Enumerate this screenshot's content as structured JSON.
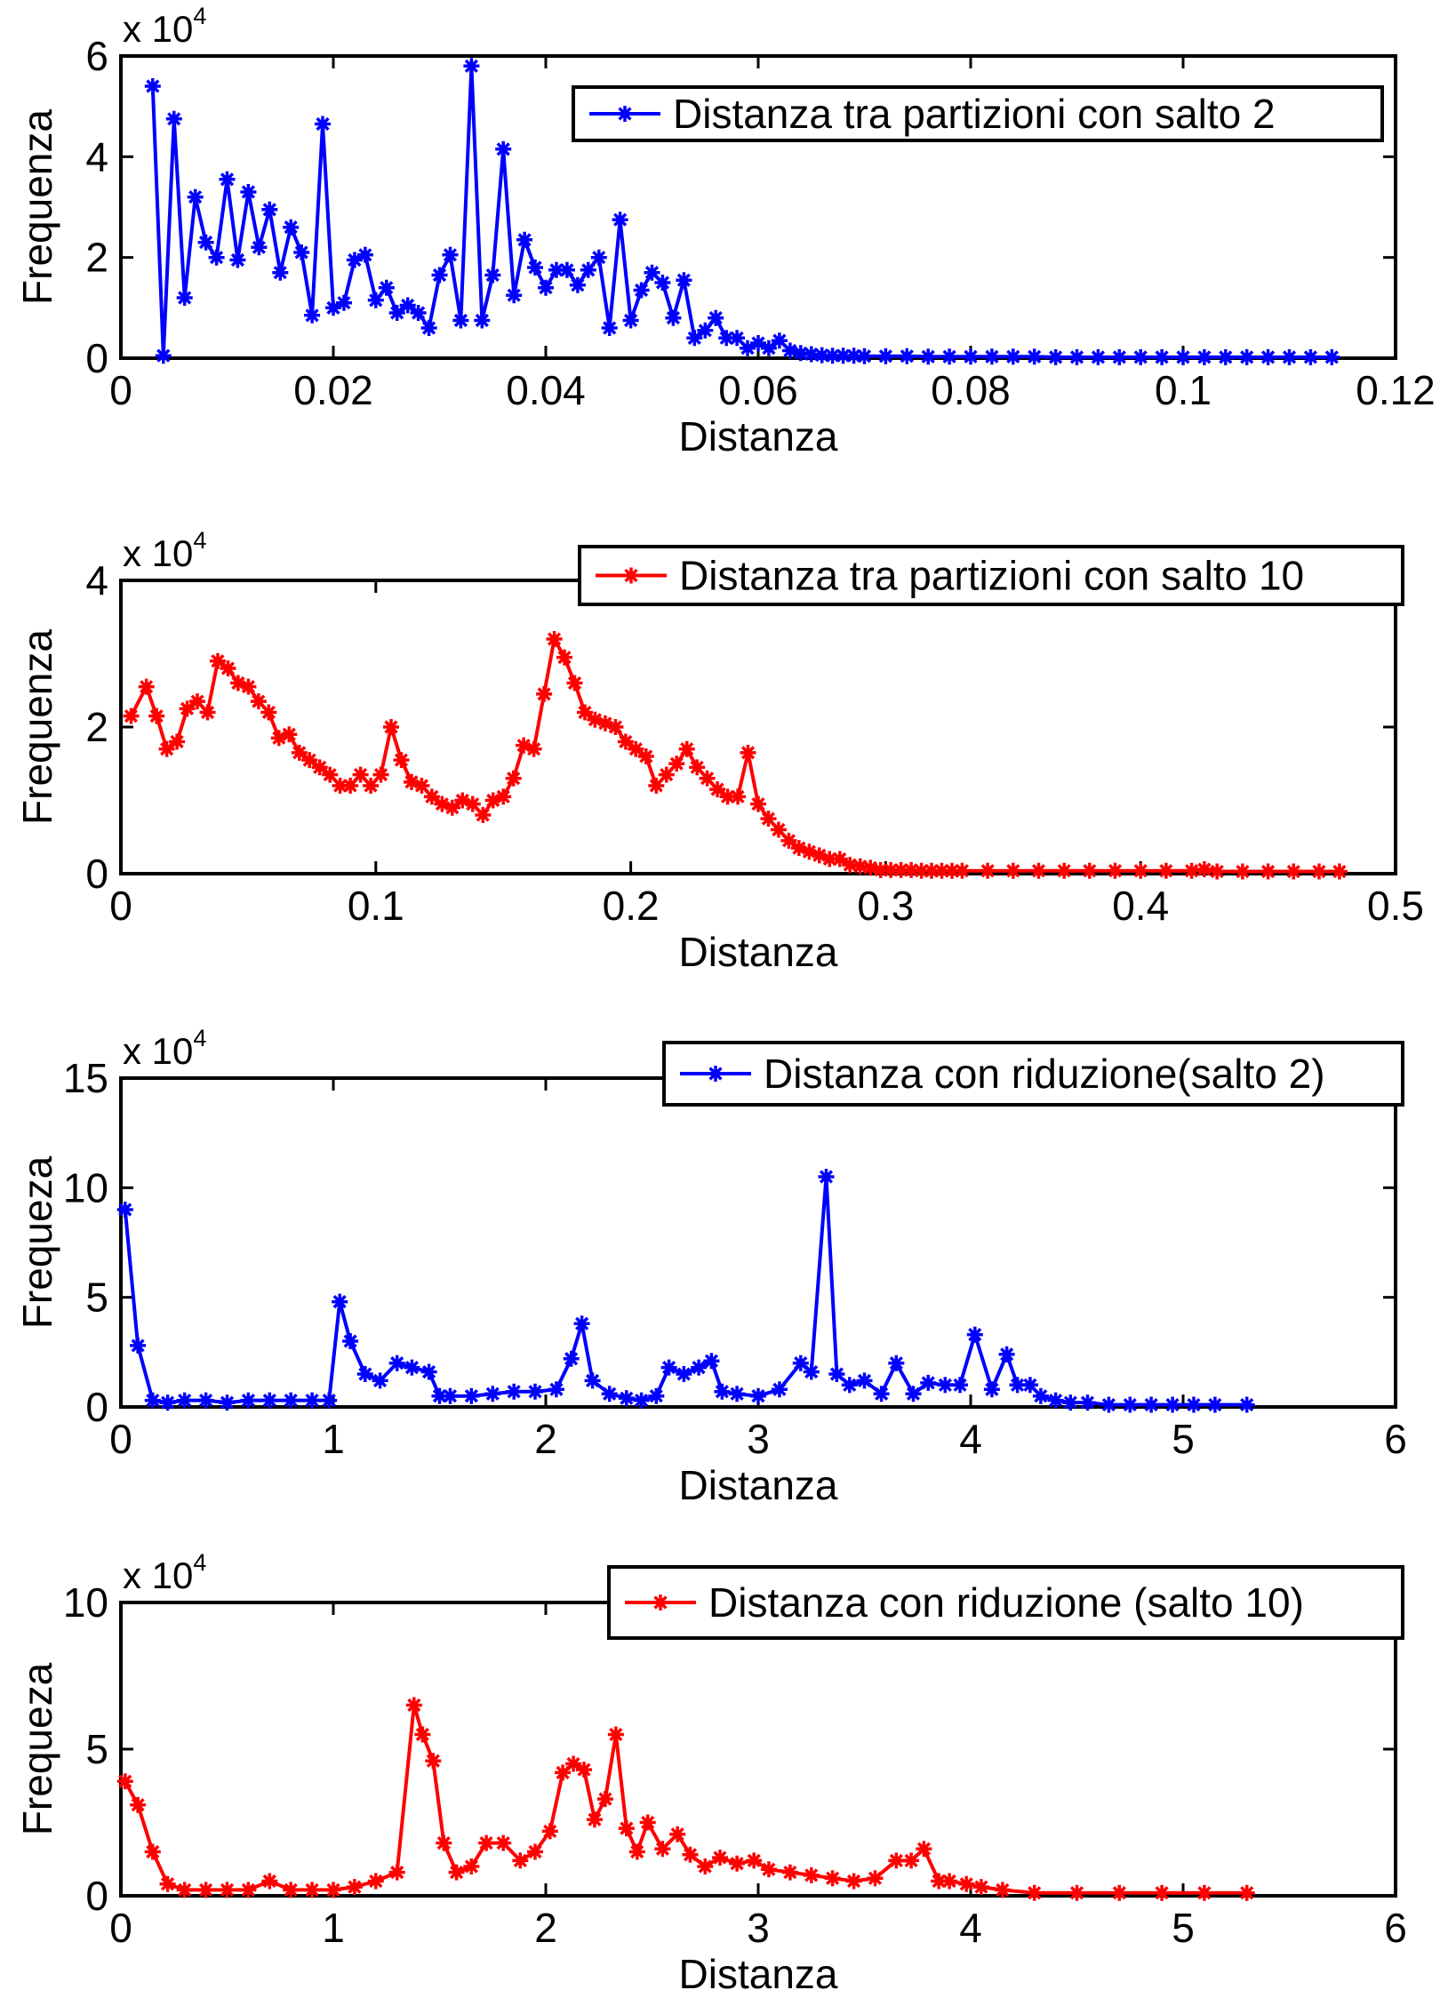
{
  "chart_data": [
    {
      "type": "line",
      "xlabel": "Distanza",
      "ylabel": "Frequenza",
      "xlim": [
        0,
        0.12
      ],
      "ylim": [
        0,
        6
      ],
      "xticks": [
        "0",
        "0.02",
        "0.04",
        "0.06",
        "0.08",
        "0.1",
        "0.12"
      ],
      "yticks": [
        "0",
        "2",
        "4",
        "6"
      ],
      "y_multiplier": {
        "base": "x 10",
        "exponent": "4"
      },
      "legend_position": "top-right",
      "grid": false,
      "series": [
        {
          "name": "Distanza tra partizioni con salto 2",
          "color": "#0000ff",
          "marker": "asterisk",
          "x": [
            0.003,
            0.004,
            0.005,
            0.006,
            0.007,
            0.008,
            0.009,
            0.01,
            0.011,
            0.012,
            0.013,
            0.014,
            0.015,
            0.016,
            0.017,
            0.018,
            0.019,
            0.02,
            0.021,
            0.022,
            0.023,
            0.024,
            0.025,
            0.026,
            0.027,
            0.028,
            0.029,
            0.03,
            0.031,
            0.032,
            0.033,
            0.034,
            0.035,
            0.036,
            0.037,
            0.038,
            0.039,
            0.04,
            0.041,
            0.042,
            0.043,
            0.044,
            0.045,
            0.046,
            0.047,
            0.048,
            0.049,
            0.05,
            0.051,
            0.052,
            0.053,
            0.054,
            0.055,
            0.056,
            0.057,
            0.058,
            0.059,
            0.06,
            0.061,
            0.062,
            0.063,
            0.064,
            0.065,
            0.066,
            0.067,
            0.068,
            0.069,
            0.07,
            0.072,
            0.074,
            0.076,
            0.078,
            0.08,
            0.082,
            0.084,
            0.086,
            0.088,
            0.09,
            0.092,
            0.094,
            0.096,
            0.098,
            0.1,
            0.102,
            0.104,
            0.106,
            0.108,
            0.11,
            0.112,
            0.114
          ],
          "y": [
            5.4,
            0.05,
            4.75,
            1.2,
            3.2,
            2.3,
            2.0,
            3.55,
            1.95,
            3.3,
            2.2,
            2.95,
            1.7,
            2.6,
            2.1,
            0.85,
            4.65,
            1.0,
            1.1,
            1.95,
            2.05,
            1.15,
            1.4,
            0.9,
            1.05,
            0.9,
            0.6,
            1.65,
            2.05,
            0.75,
            5.8,
            0.75,
            1.65,
            4.15,
            1.25,
            2.35,
            1.8,
            1.4,
            1.75,
            1.75,
            1.45,
            1.75,
            2.0,
            0.6,
            2.75,
            0.75,
            1.35,
            1.7,
            1.5,
            0.8,
            1.55,
            0.4,
            0.55,
            0.8,
            0.4,
            0.4,
            0.2,
            0.3,
            0.2,
            0.35,
            0.15,
            0.1,
            0.08,
            0.06,
            0.05,
            0.05,
            0.05,
            0.04,
            0.04,
            0.04,
            0.03,
            0.03,
            0.03,
            0.03,
            0.03,
            0.03,
            0.02,
            0.02,
            0.02,
            0.02,
            0.02,
            0.02,
            0.02,
            0.02,
            0.02,
            0.02,
            0.02,
            0.02,
            0.02,
            0.02
          ]
        }
      ]
    },
    {
      "type": "line",
      "xlabel": "Distanza",
      "ylabel": "Frequenza",
      "xlim": [
        0,
        0.5
      ],
      "ylim": [
        0,
        4
      ],
      "xticks": [
        "0",
        "0.1",
        "0.2",
        "0.3",
        "0.4",
        "0.5"
      ],
      "yticks": [
        "0",
        "2",
        "4"
      ],
      "y_multiplier": {
        "base": "x 10",
        "exponent": "4"
      },
      "legend_position": "top-right",
      "grid": false,
      "series": [
        {
          "name": "Distanza tra partizioni con salto 10",
          "color": "#ff0000",
          "marker": "asterisk",
          "x": [
            0.004,
            0.01,
            0.014,
            0.018,
            0.022,
            0.026,
            0.03,
            0.034,
            0.038,
            0.042,
            0.046,
            0.05,
            0.054,
            0.058,
            0.062,
            0.066,
            0.07,
            0.074,
            0.078,
            0.082,
            0.086,
            0.09,
            0.094,
            0.098,
            0.102,
            0.106,
            0.11,
            0.114,
            0.118,
            0.122,
            0.126,
            0.13,
            0.134,
            0.138,
            0.142,
            0.146,
            0.15,
            0.154,
            0.158,
            0.162,
            0.166,
            0.17,
            0.174,
            0.178,
            0.182,
            0.186,
            0.19,
            0.194,
            0.198,
            0.202,
            0.206,
            0.21,
            0.214,
            0.218,
            0.222,
            0.226,
            0.23,
            0.234,
            0.238,
            0.242,
            0.246,
            0.25,
            0.254,
            0.258,
            0.262,
            0.266,
            0.27,
            0.274,
            0.278,
            0.282,
            0.286,
            0.29,
            0.294,
            0.298,
            0.302,
            0.306,
            0.31,
            0.314,
            0.318,
            0.322,
            0.326,
            0.33,
            0.34,
            0.35,
            0.36,
            0.37,
            0.38,
            0.39,
            0.4,
            0.41,
            0.42,
            0.425,
            0.43,
            0.44,
            0.45,
            0.46,
            0.47,
            0.478
          ],
          "y": [
            2.15,
            2.55,
            2.15,
            1.7,
            1.8,
            2.25,
            2.35,
            2.2,
            2.9,
            2.8,
            2.6,
            2.55,
            2.35,
            2.2,
            1.85,
            1.9,
            1.65,
            1.55,
            1.45,
            1.35,
            1.2,
            1.2,
            1.35,
            1.2,
            1.35,
            2.0,
            1.55,
            1.25,
            1.2,
            1.05,
            0.95,
            0.9,
            1.0,
            0.95,
            0.8,
            1.0,
            1.05,
            1.3,
            1.75,
            1.7,
            2.45,
            3.2,
            2.95,
            2.6,
            2.2,
            2.1,
            2.05,
            2.0,
            1.8,
            1.7,
            1.6,
            1.2,
            1.35,
            1.5,
            1.7,
            1.45,
            1.3,
            1.15,
            1.05,
            1.05,
            1.65,
            0.95,
            0.75,
            0.6,
            0.45,
            0.35,
            0.3,
            0.25,
            0.2,
            0.2,
            0.12,
            0.1,
            0.08,
            0.05,
            0.05,
            0.05,
            0.05,
            0.04,
            0.04,
            0.04,
            0.04,
            0.04,
            0.04,
            0.04,
            0.04,
            0.04,
            0.04,
            0.04,
            0.04,
            0.04,
            0.04,
            0.06,
            0.03,
            0.03,
            0.03,
            0.03,
            0.03,
            0.03
          ]
        }
      ]
    },
    {
      "type": "line",
      "xlabel": "Distanza",
      "ylabel": "Frequeza",
      "xlim": [
        0,
        6
      ],
      "ylim": [
        0,
        15
      ],
      "xticks": [
        "0",
        "1",
        "2",
        "3",
        "4",
        "5",
        "6"
      ],
      "yticks": [
        "0",
        "5",
        "10",
        "15"
      ],
      "y_multiplier": {
        "base": "x 10",
        "exponent": "4"
      },
      "legend_position": "top-right",
      "grid": false,
      "series": [
        {
          "name": "Distanza con riduzione(salto 2)",
          "color": "#0000ff",
          "marker": "asterisk",
          "x": [
            0.02,
            0.08,
            0.15,
            0.22,
            0.3,
            0.4,
            0.5,
            0.6,
            0.7,
            0.8,
            0.9,
            0.98,
            1.03,
            1.08,
            1.15,
            1.22,
            1.3,
            1.37,
            1.45,
            1.5,
            1.55,
            1.65,
            1.75,
            1.85,
            1.95,
            2.05,
            2.12,
            2.17,
            2.22,
            2.3,
            2.38,
            2.45,
            2.52,
            2.58,
            2.65,
            2.72,
            2.78,
            2.83,
            2.9,
            3.0,
            3.1,
            3.2,
            3.25,
            3.32,
            3.37,
            3.43,
            3.5,
            3.58,
            3.65,
            3.73,
            3.8,
            3.88,
            3.95,
            4.02,
            4.1,
            4.17,
            4.22,
            4.28,
            4.33,
            4.4,
            4.47,
            4.55,
            4.65,
            4.75,
            4.85,
            4.95,
            5.05,
            5.15,
            5.3
          ],
          "y": [
            9.0,
            2.8,
            0.3,
            0.2,
            0.3,
            0.3,
            0.2,
            0.3,
            0.3,
            0.3,
            0.3,
            0.3,
            4.8,
            3.0,
            1.5,
            1.2,
            2.0,
            1.8,
            1.6,
            0.5,
            0.5,
            0.5,
            0.6,
            0.7,
            0.7,
            0.8,
            2.2,
            3.8,
            1.2,
            0.6,
            0.4,
            0.3,
            0.5,
            1.8,
            1.5,
            1.8,
            2.1,
            0.7,
            0.6,
            0.5,
            0.8,
            2.0,
            1.6,
            10.5,
            1.5,
            1.0,
            1.2,
            0.6,
            2.0,
            0.6,
            1.1,
            1.0,
            1.0,
            3.3,
            0.8,
            2.4,
            1.0,
            1.0,
            0.5,
            0.3,
            0.2,
            0.2,
            0.1,
            0.1,
            0.1,
            0.1,
            0.1,
            0.1,
            0.1
          ]
        }
      ]
    },
    {
      "type": "line",
      "xlabel": "Distanza",
      "ylabel": "Frequeza",
      "xlim": [
        0,
        6
      ],
      "ylim": [
        0,
        10
      ],
      "xticks": [
        "0",
        "1",
        "2",
        "3",
        "4",
        "5",
        "6"
      ],
      "yticks": [
        "0",
        "5",
        "10"
      ],
      "y_multiplier": {
        "base": "x 10",
        "exponent": "4"
      },
      "legend_position": "top-right",
      "grid": false,
      "series": [
        {
          "name": "Distanza con riduzione (salto 10)",
          "color": "#ff0000",
          "marker": "asterisk",
          "x": [
            0.02,
            0.08,
            0.15,
            0.22,
            0.3,
            0.4,
            0.5,
            0.6,
            0.7,
            0.8,
            0.9,
            1.0,
            1.1,
            1.2,
            1.3,
            1.38,
            1.42,
            1.47,
            1.52,
            1.58,
            1.65,
            1.72,
            1.8,
            1.88,
            1.95,
            2.02,
            2.08,
            2.13,
            2.18,
            2.23,
            2.28,
            2.33,
            2.38,
            2.43,
            2.48,
            2.55,
            2.62,
            2.68,
            2.75,
            2.82,
            2.9,
            2.98,
            3.05,
            3.15,
            3.25,
            3.35,
            3.45,
            3.55,
            3.65,
            3.72,
            3.78,
            3.85,
            3.9,
            3.98,
            4.05,
            4.15,
            4.3,
            4.5,
            4.7,
            4.9,
            5.1,
            5.3
          ],
          "y": [
            3.9,
            3.1,
            1.5,
            0.4,
            0.2,
            0.2,
            0.2,
            0.2,
            0.5,
            0.2,
            0.2,
            0.2,
            0.3,
            0.5,
            0.8,
            6.5,
            5.5,
            4.6,
            1.8,
            0.8,
            1.0,
            1.8,
            1.8,
            1.2,
            1.5,
            2.2,
            4.2,
            4.5,
            4.3,
            2.6,
            3.3,
            5.5,
            2.3,
            1.5,
            2.5,
            1.6,
            2.1,
            1.4,
            1.0,
            1.3,
            1.1,
            1.2,
            0.9,
            0.8,
            0.7,
            0.6,
            0.5,
            0.6,
            1.2,
            1.2,
            1.6,
            0.5,
            0.5,
            0.4,
            0.3,
            0.2,
            0.1,
            0.1,
            0.1,
            0.1,
            0.1,
            0.1
          ]
        }
      ]
    }
  ]
}
